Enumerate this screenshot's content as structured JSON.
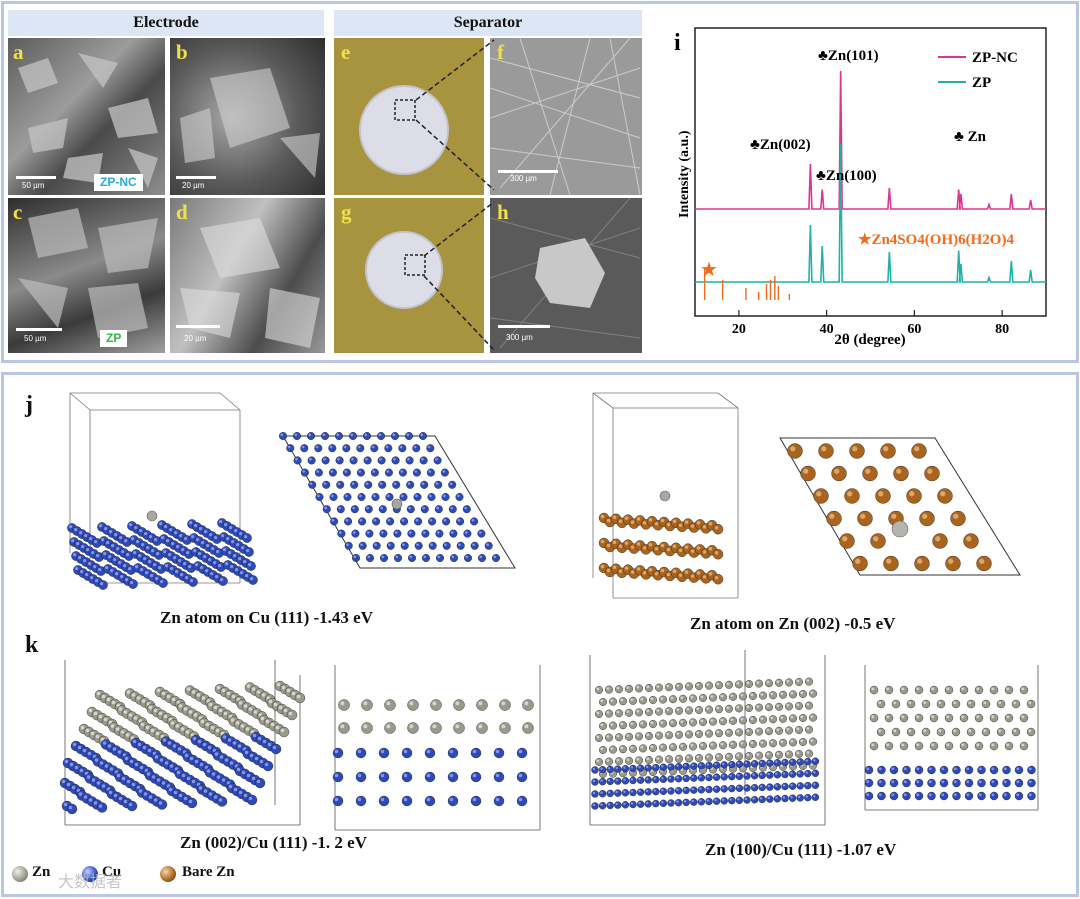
{
  "top": {
    "electrode_header": "Electrode",
    "separator_header": "Separator",
    "panels": [
      {
        "letter": "a",
        "scale": "50 µm",
        "tag": "ZP-NC",
        "tag_color": "#29a9e0"
      },
      {
        "letter": "b",
        "scale": "20 µm"
      },
      {
        "letter": "c",
        "scale": "50 µm",
        "tag": "ZP",
        "tag_color": "#2db84a"
      },
      {
        "letter": "d",
        "scale": "20 µm"
      },
      {
        "letter": "e"
      },
      {
        "letter": "f",
        "scale": "300 µm"
      },
      {
        "letter": "g"
      },
      {
        "letter": "h",
        "scale": "300 µm"
      }
    ]
  },
  "chart_data": {
    "type": "line",
    "panel_letter": "i",
    "xlabel": "2θ (degree)",
    "ylabel": "Intensity (a.u.)",
    "xlim": [
      10,
      90
    ],
    "xticks": [
      20,
      40,
      60,
      80
    ],
    "legend": [
      {
        "name": "ZP-NC",
        "color": "#e0338f"
      },
      {
        "name": "ZP",
        "color": "#1fb2a6"
      }
    ],
    "series": [
      {
        "name": "ZP-NC",
        "color": "#e0338f",
        "peaks": [
          [
            36.3,
            0.3
          ],
          [
            39.0,
            0.13
          ],
          [
            43.2,
            0.92
          ],
          [
            54.3,
            0.14
          ],
          [
            70.1,
            0.13
          ],
          [
            70.6,
            0.1
          ],
          [
            77.0,
            0.03
          ],
          [
            82.1,
            0.1
          ],
          [
            86.5,
            0.06
          ]
        ]
      },
      {
        "name": "ZP",
        "color": "#1fb2a6",
        "peaks": [
          [
            36.3,
            0.38
          ],
          [
            39.0,
            0.24
          ],
          [
            43.2,
            0.92
          ],
          [
            54.3,
            0.2
          ],
          [
            70.1,
            0.21
          ],
          [
            70.6,
            0.12
          ],
          [
            77.0,
            0.03
          ],
          [
            82.1,
            0.14
          ],
          [
            86.5,
            0.08
          ]
        ]
      }
    ],
    "reference": {
      "name": "Zn4SO4(OH)6(H2O)4",
      "color": "#f26a1b",
      "lines": [
        [
          12.2,
          0.8
        ],
        [
          16.3,
          0.5
        ],
        [
          21.6,
          0.3
        ],
        [
          24.5,
          0.2
        ],
        [
          26.3,
          0.4
        ],
        [
          27.2,
          0.5
        ],
        [
          28.2,
          0.6
        ],
        [
          29.0,
          0.35
        ],
        [
          31.5,
          0.15
        ]
      ]
    },
    "annotations": {
      "zn101": "♣Zn(101)",
      "zn002": "♣Zn(002)",
      "zn100": "♣Zn(100)",
      "zn": "♣  Zn",
      "zhs_label": "★Zn4SO4(OH)6(H2O)4",
      "star": "★"
    }
  },
  "bottom": {
    "j_label": "j",
    "k_label": "k",
    "cap_j1": "Zn atom on Cu (111) -1.43 eV",
    "cap_j2": "Zn atom on Zn (002) -0.5 eV",
    "cap_k1": "Zn (002)/Cu (111) -1. 2 eV",
    "cap_k2": "Zn (100)/Cu (111) -1.07 eV",
    "legend": [
      {
        "label": "Zn",
        "color": "#9a9a8c"
      },
      {
        "label": "Cu",
        "color": "#2e49b8"
      },
      {
        "label": "Bare Zn",
        "color": "#a9641f"
      }
    ],
    "watermark": "大数据者"
  },
  "colors": {
    "frame": "#b9c6e6",
    "header_bg": "#dde6f4",
    "cu": "#2e49b8",
    "zn": "#9a9a8c",
    "bare_zn": "#a9641f"
  }
}
